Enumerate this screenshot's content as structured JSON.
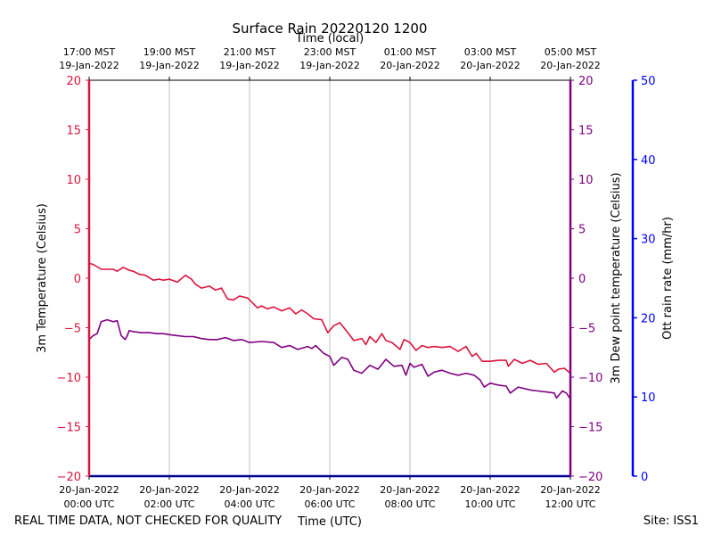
{
  "title": "Surface Rain 20220120 1200",
  "footer": {
    "left": "REAL TIME DATA, NOT CHECKED FOR QUALITY",
    "right": "Site: ISS1"
  },
  "colors": {
    "temperature": "#dc143c",
    "dewpoint": "#800080",
    "rain": "#0000ff",
    "grid": "#b0b0b0"
  },
  "chart_data": {
    "type": "line",
    "title": "Surface Rain 20220120 1200",
    "xlabel": "Time (UTC)",
    "x2label": "Time (local)",
    "xlim_utc_hours": [
      0,
      12
    ],
    "grid": "vertical lines only",
    "x_ticks_utc": [
      {
        "hour": 0,
        "line1": "20-Jan-2022",
        "line2": "00:00 UTC"
      },
      {
        "hour": 2,
        "line1": "20-Jan-2022",
        "line2": "02:00 UTC"
      },
      {
        "hour": 4,
        "line1": "20-Jan-2022",
        "line2": "04:00 UTC"
      },
      {
        "hour": 6,
        "line1": "20-Jan-2022",
        "line2": "06:00 UTC"
      },
      {
        "hour": 8,
        "line1": "20-Jan-2022",
        "line2": "08:00 UTC"
      },
      {
        "hour": 10,
        "line1": "20-Jan-2022",
        "line2": "10:00 UTC"
      },
      {
        "hour": 12,
        "line1": "20-Jan-2022",
        "line2": "12:00 UTC"
      }
    ],
    "x_ticks_local": [
      {
        "hour": 0,
        "line1": "17:00 MST",
        "line2": "19-Jan-2022"
      },
      {
        "hour": 2,
        "line1": "19:00 MST",
        "line2": "19-Jan-2022"
      },
      {
        "hour": 4,
        "line1": "21:00 MST",
        "line2": "19-Jan-2022"
      },
      {
        "hour": 6,
        "line1": "23:00 MST",
        "line2": "19-Jan-2022"
      },
      {
        "hour": 8,
        "line1": "01:00 MST",
        "line2": "20-Jan-2022"
      },
      {
        "hour": 10,
        "line1": "03:00 MST",
        "line2": "20-Jan-2022"
      },
      {
        "hour": 12,
        "line1": "05:00 MST",
        "line2": "20-Jan-2022"
      }
    ],
    "y_left": {
      "label": "3m Temperature (Celsius)",
      "lim": [
        -20,
        20
      ],
      "ticks": [
        20,
        15,
        10,
        5,
        0,
        -5,
        -10,
        -15,
        -20
      ]
    },
    "y_right1": {
      "label": "3m Dew point temperature (Celsius)",
      "lim": [
        -20,
        20
      ],
      "ticks": [
        20,
        15,
        10,
        5,
        0,
        -5,
        -10,
        -15,
        -20
      ]
    },
    "y_right2": {
      "label": "Ott rain rate (mm/hr)",
      "lim": [
        0,
        50
      ],
      "ticks": [
        50,
        40,
        30,
        20,
        10,
        0
      ]
    },
    "series": [
      {
        "name": "3m Temperature (Celsius)",
        "axis": "left",
        "x": [
          0,
          0.1,
          0.3,
          0.6,
          0.7,
          0.85,
          1.0,
          1.1,
          1.25,
          1.4,
          1.6,
          1.75,
          1.85,
          2.0,
          2.2,
          2.4,
          2.55,
          2.65,
          2.8,
          3.0,
          3.15,
          3.3,
          3.45,
          3.6,
          3.75,
          3.95,
          4.2,
          4.3,
          4.45,
          4.6,
          4.8,
          5.0,
          5.15,
          5.3,
          5.45,
          5.6,
          5.8,
          5.95,
          6.1,
          6.25,
          6.45,
          6.6,
          6.8,
          6.9,
          7.0,
          7.15,
          7.3,
          7.4,
          7.55,
          7.75,
          7.85,
          8.0,
          8.15,
          8.3,
          8.45,
          8.6,
          8.8,
          9.0,
          9.2,
          9.4,
          9.55,
          9.65,
          9.8,
          10.0,
          10.2,
          10.4,
          10.45,
          10.6,
          10.8,
          11.0,
          11.2,
          11.4,
          11.6,
          11.7,
          11.85,
          12.0
        ],
        "values": [
          1.5,
          1.4,
          0.9,
          0.9,
          0.7,
          1.1,
          0.8,
          0.7,
          0.4,
          0.3,
          -0.2,
          -0.1,
          -0.2,
          -0.1,
          -0.4,
          0.3,
          -0.1,
          -0.6,
          -1.0,
          -0.8,
          -1.2,
          -1.0,
          -2.1,
          -2.2,
          -1.8,
          -2.0,
          -3.0,
          -2.8,
          -3.1,
          -2.9,
          -3.3,
          -3.0,
          -3.6,
          -3.2,
          -3.6,
          -4.1,
          -4.2,
          -5.5,
          -4.8,
          -4.5,
          -5.5,
          -6.3,
          -6.1,
          -6.7,
          -5.9,
          -6.5,
          -5.6,
          -6.3,
          -6.5,
          -7.2,
          -6.2,
          -6.5,
          -7.3,
          -6.8,
          -7.0,
          -6.9,
          -7.0,
          -6.9,
          -7.4,
          -6.9,
          -7.9,
          -7.6,
          -8.4,
          -8.4,
          -8.3,
          -8.3,
          -8.9,
          -8.2,
          -8.6,
          -8.3,
          -8.7,
          -8.6,
          -9.5,
          -9.2,
          -9.1,
          -9.6
        ]
      },
      {
        "name": "3m Dew point temperature (Celsius)",
        "axis": "right",
        "x": [
          0,
          0.1,
          0.2,
          0.3,
          0.45,
          0.6,
          0.7,
          0.8,
          0.9,
          0.95,
          1.0,
          1.1,
          1.3,
          1.5,
          1.7,
          1.85,
          2.0,
          2.2,
          2.4,
          2.6,
          2.8,
          3.0,
          3.2,
          3.4,
          3.6,
          3.8,
          4.0,
          4.3,
          4.6,
          4.8,
          5.0,
          5.2,
          5.45,
          5.55,
          5.65,
          5.85,
          6.0,
          6.1,
          6.3,
          6.45,
          6.6,
          6.8,
          7.0,
          7.2,
          7.4,
          7.6,
          7.8,
          7.9,
          8.0,
          8.1,
          8.3,
          8.45,
          8.6,
          8.8,
          9.0,
          9.2,
          9.4,
          9.6,
          9.75,
          9.85,
          10.0,
          10.2,
          10.4,
          10.5,
          10.7,
          10.9,
          11.0,
          11.2,
          11.4,
          11.6,
          11.65,
          11.8,
          11.9,
          12.0
        ],
        "values": [
          -6.2,
          -5.8,
          -5.6,
          -4.4,
          -4.2,
          -4.4,
          -4.3,
          -5.8,
          -6.2,
          -5.8,
          -5.3,
          -5.4,
          -5.5,
          -5.5,
          -5.6,
          -5.6,
          -5.7,
          -5.8,
          -5.9,
          -5.9,
          -6.1,
          -6.2,
          -6.2,
          -6.0,
          -6.3,
          -6.2,
          -6.5,
          -6.4,
          -6.5,
          -7.0,
          -6.8,
          -7.2,
          -6.9,
          -7.1,
          -6.8,
          -7.6,
          -7.9,
          -8.8,
          -8.0,
          -8.2,
          -9.3,
          -9.6,
          -8.8,
          -9.2,
          -8.2,
          -8.9,
          -8.8,
          -9.8,
          -8.6,
          -9.0,
          -8.7,
          -9.9,
          -9.5,
          -9.3,
          -9.6,
          -9.8,
          -9.6,
          -9.8,
          -10.3,
          -11.0,
          -10.6,
          -10.8,
          -10.9,
          -11.6,
          -11.0,
          -11.2,
          -11.3,
          -11.4,
          -11.5,
          -11.6,
          -12.1,
          -11.4,
          -11.6,
          -12.2
        ]
      },
      {
        "name": "Ott rain rate (mm/hr)",
        "axis": "right2",
        "x": [
          0,
          12
        ],
        "values": [
          0,
          0
        ]
      }
    ]
  }
}
